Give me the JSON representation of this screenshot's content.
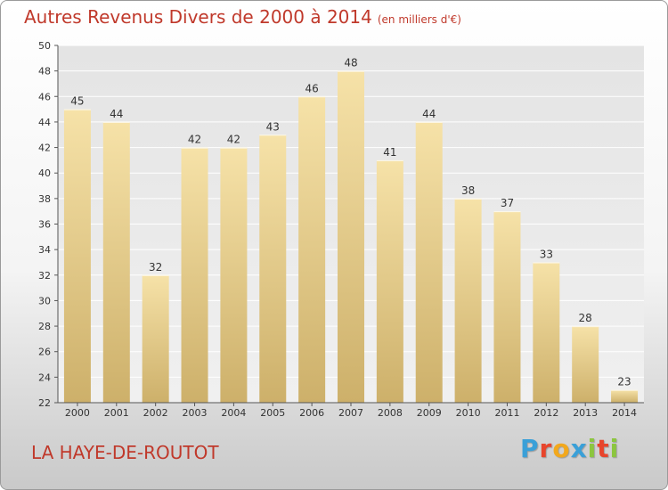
{
  "header": {
    "title": "Autres Revenus Divers de 2000 à 2014",
    "unit": "(en milliers d'€)"
  },
  "footer": {
    "commune": "LA HAYE-DE-ROUTOT",
    "logo_letters": [
      "P",
      "r",
      "o",
      "x",
      "i",
      "t",
      "i"
    ],
    "logo_colors": [
      "#3aa0d8",
      "#e8452c",
      "#f2a81d",
      "#3aa0d8",
      "#8cc63f",
      "#e8452c",
      "#8cc63f"
    ]
  },
  "chart_data": {
    "type": "bar",
    "title": "Autres Revenus Divers de 2000 à 2014",
    "xlabel": "",
    "ylabel": "",
    "categories": [
      "2000",
      "2001",
      "2002",
      "2003",
      "2004",
      "2005",
      "2006",
      "2007",
      "2008",
      "2009",
      "2010",
      "2011",
      "2012",
      "2013",
      "2014"
    ],
    "values": [
      45,
      44,
      32,
      42,
      42,
      43,
      46,
      48,
      41,
      44,
      38,
      37,
      33,
      28,
      23
    ],
    "ylim": [
      22,
      50
    ],
    "yticks": [
      22,
      24,
      26,
      28,
      30,
      32,
      34,
      36,
      38,
      40,
      42,
      44,
      46,
      48,
      50
    ],
    "grid": true,
    "bar_color": "#e8cf8c"
  }
}
